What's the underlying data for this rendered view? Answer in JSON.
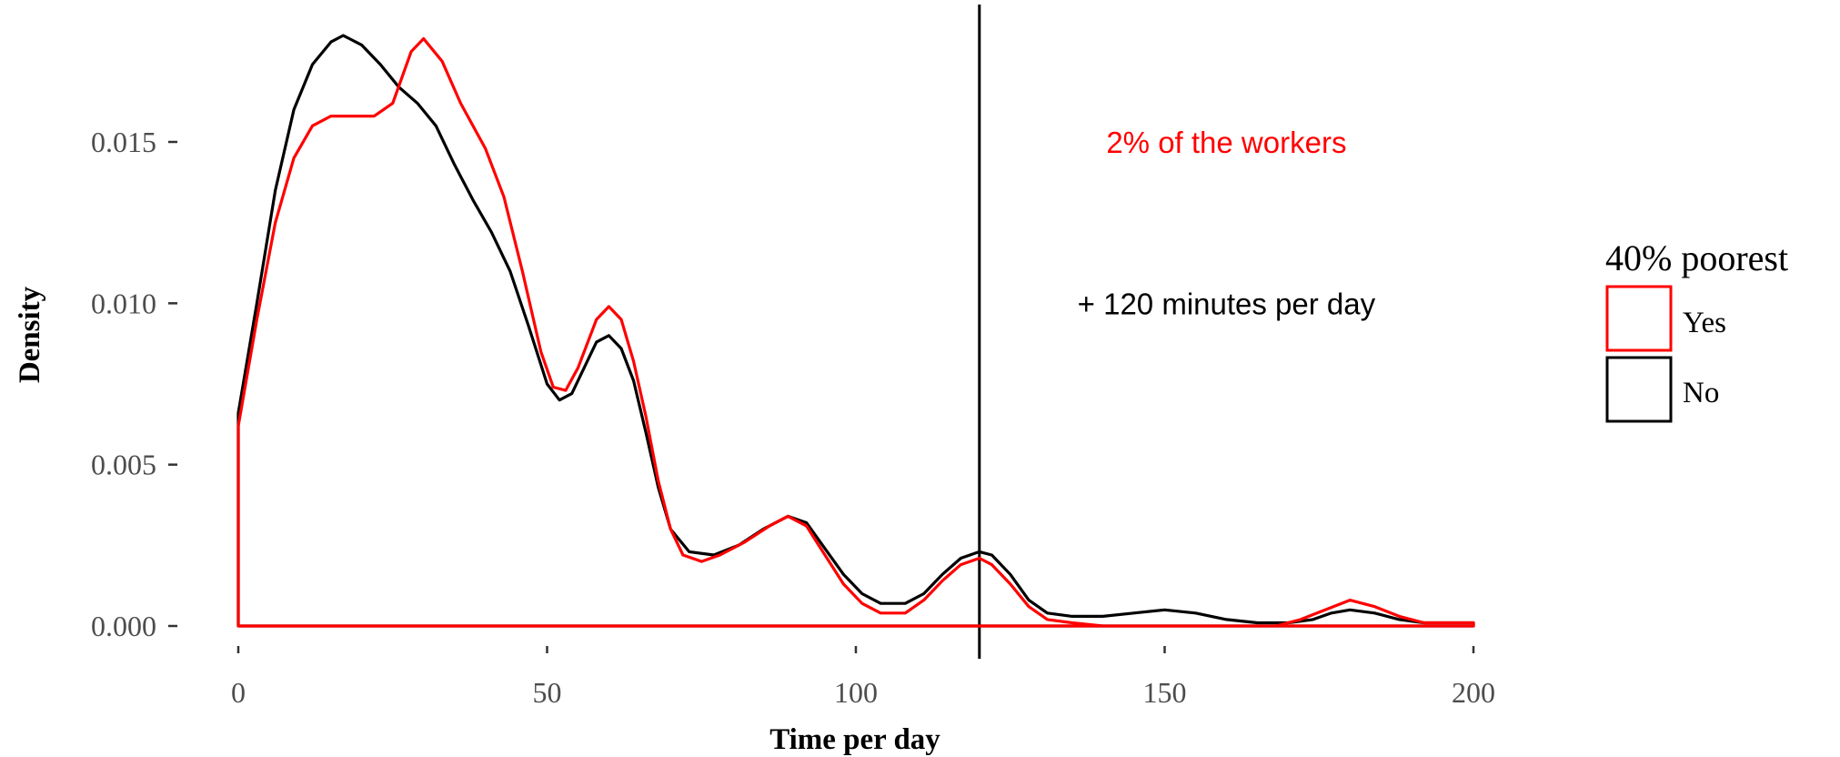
{
  "chart_data": {
    "type": "line",
    "title": "",
    "xlabel": "Time per day",
    "ylabel": "Density",
    "xlim": [
      0,
      200
    ],
    "ylim": [
      0,
      0.0185
    ],
    "x_ticks": [
      0,
      50,
      100,
      150,
      200
    ],
    "x_tick_labels": [
      "0",
      "50",
      "100",
      "150",
      "200"
    ],
    "y_ticks": [
      0,
      0.005,
      0.01,
      0.015
    ],
    "y_tick_labels": [
      "0.000",
      "0.005",
      "0.010",
      "0.015"
    ],
    "grid": false,
    "legend": {
      "title": "40% poorest",
      "placement": "right",
      "entries": [
        {
          "label": "Yes",
          "color": "#ff0000"
        },
        {
          "label": "No",
          "color": "#000000"
        }
      ]
    },
    "vline": {
      "x": 120,
      "color": "#000000"
    },
    "annotations": [
      {
        "text": "2% of the workers",
        "x": 160,
        "y": 0.015,
        "color": "#ff0000"
      },
      {
        "text": "+ 120 minutes per day",
        "x": 160,
        "y": 0.01,
        "color": "#000000"
      }
    ],
    "series": [
      {
        "name": "Yes",
        "color": "#ff0000",
        "points": [
          [
            0,
            0.0062
          ],
          [
            3,
            0.0095
          ],
          [
            6,
            0.0125
          ],
          [
            9,
            0.0145
          ],
          [
            12,
            0.0155
          ],
          [
            15,
            0.0158
          ],
          [
            18,
            0.0158
          ],
          [
            22,
            0.0158
          ],
          [
            25,
            0.0162
          ],
          [
            28,
            0.0178
          ],
          [
            30,
            0.0182
          ],
          [
            33,
            0.0175
          ],
          [
            36,
            0.0162
          ],
          [
            40,
            0.0148
          ],
          [
            43,
            0.0133
          ],
          [
            46,
            0.011
          ],
          [
            49,
            0.0085
          ],
          [
            51,
            0.0074
          ],
          [
            53,
            0.0073
          ],
          [
            55,
            0.008
          ],
          [
            58,
            0.0095
          ],
          [
            60,
            0.0099
          ],
          [
            62,
            0.0095
          ],
          [
            64,
            0.0082
          ],
          [
            66,
            0.0065
          ],
          [
            68,
            0.0045
          ],
          [
            70,
            0.003
          ],
          [
            72,
            0.0022
          ],
          [
            75,
            0.002
          ],
          [
            78,
            0.0022
          ],
          [
            82,
            0.0026
          ],
          [
            86,
            0.0031
          ],
          [
            89,
            0.0034
          ],
          [
            92,
            0.0031
          ],
          [
            95,
            0.0022
          ],
          [
            98,
            0.0013
          ],
          [
            101,
            0.0007
          ],
          [
            104,
            0.0004
          ],
          [
            108,
            0.0004
          ],
          [
            111,
            0.0008
          ],
          [
            114,
            0.0014
          ],
          [
            117,
            0.0019
          ],
          [
            120,
            0.0021
          ],
          [
            122,
            0.0019
          ],
          [
            125,
            0.0013
          ],
          [
            128,
            0.0006
          ],
          [
            131,
            0.0002
          ],
          [
            135,
            0.0001
          ],
          [
            140,
            0.0
          ],
          [
            150,
            0.0
          ],
          [
            160,
            0.0
          ],
          [
            168,
            0.0
          ],
          [
            172,
            0.0002
          ],
          [
            176,
            0.0005
          ],
          [
            180,
            0.0008
          ],
          [
            184,
            0.0006
          ],
          [
            188,
            0.0003
          ],
          [
            192,
            0.0001
          ],
          [
            196,
            0.0001
          ],
          [
            200,
            0.0001
          ]
        ]
      },
      {
        "name": "No",
        "color": "#000000",
        "points": [
          [
            0,
            0.0066
          ],
          [
            3,
            0.01
          ],
          [
            6,
            0.0135
          ],
          [
            9,
            0.016
          ],
          [
            12,
            0.0174
          ],
          [
            15,
            0.0181
          ],
          [
            17,
            0.0183
          ],
          [
            20,
            0.018
          ],
          [
            23,
            0.0174
          ],
          [
            26,
            0.0167
          ],
          [
            29,
            0.0162
          ],
          [
            32,
            0.0155
          ],
          [
            35,
            0.0143
          ],
          [
            38,
            0.0132
          ],
          [
            41,
            0.0122
          ],
          [
            44,
            0.011
          ],
          [
            47,
            0.0093
          ],
          [
            50,
            0.0075
          ],
          [
            52,
            0.007
          ],
          [
            54,
            0.0072
          ],
          [
            56,
            0.008
          ],
          [
            58,
            0.0088
          ],
          [
            60,
            0.009
          ],
          [
            62,
            0.0086
          ],
          [
            64,
            0.0076
          ],
          [
            66,
            0.006
          ],
          [
            68,
            0.0043
          ],
          [
            70,
            0.003
          ],
          [
            73,
            0.0023
          ],
          [
            77,
            0.0022
          ],
          [
            81,
            0.0025
          ],
          [
            85,
            0.003
          ],
          [
            89,
            0.0034
          ],
          [
            92,
            0.0032
          ],
          [
            95,
            0.0024
          ],
          [
            98,
            0.0016
          ],
          [
            101,
            0.001
          ],
          [
            104,
            0.0007
          ],
          [
            108,
            0.0007
          ],
          [
            111,
            0.001
          ],
          [
            114,
            0.0016
          ],
          [
            117,
            0.0021
          ],
          [
            120,
            0.0023
          ],
          [
            122,
            0.0022
          ],
          [
            125,
            0.0016
          ],
          [
            128,
            0.0008
          ],
          [
            131,
            0.0004
          ],
          [
            135,
            0.0003
          ],
          [
            140,
            0.0003
          ],
          [
            145,
            0.0004
          ],
          [
            150,
            0.0005
          ],
          [
            155,
            0.0004
          ],
          [
            160,
            0.0002
          ],
          [
            165,
            0.0001
          ],
          [
            170,
            0.0001
          ],
          [
            174,
            0.0002
          ],
          [
            177,
            0.0004
          ],
          [
            180,
            0.0005
          ],
          [
            184,
            0.0004
          ],
          [
            188,
            0.0002
          ],
          [
            192,
            0.0001
          ],
          [
            196,
            0.0001
          ],
          [
            200,
            0.0001
          ]
        ]
      }
    ]
  }
}
